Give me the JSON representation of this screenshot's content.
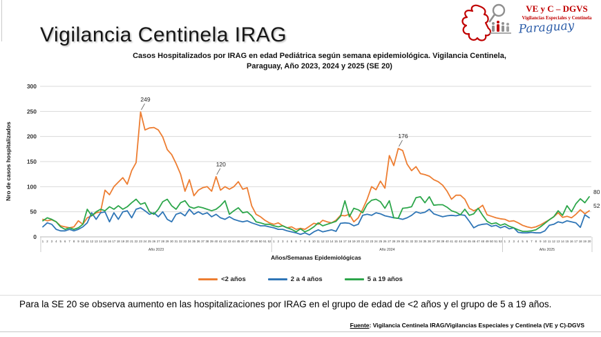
{
  "slide": {
    "title": "Vigilancia Centinela IRAG",
    "commentary": "Para la SE 20 se observa aumento en las hospitalizaciones por IRAG en el grupo de edad de <2 años y el grupo de 5 a 19 años.",
    "source_label": "Fuente",
    "source_text": ": Vigilancia  Centinela IRAG/Vigilancias Especiales y Centinela (VE y C)-DGVS"
  },
  "logo": {
    "line1": "VE y C – DGVS",
    "line2": "Vigilancias Especiales y Centinela",
    "line3": "Paraguay",
    "red": "#c00000",
    "blue": "#2b5ca8",
    "gray": "#8f8f8f"
  },
  "chart_data": {
    "type": "line",
    "title_line1": "Casos Hospitalizados por IRAG en edad Pediátrica según semana epidemiológica. Vigilancia Centinela,",
    "title_line2": "Paraguay, Año 2023, 2024 y 2025 (SE 20)",
    "ylabel": "Nro de casos hospitalizados",
    "xlabel": "Años/Semanas Epidemiológicas",
    "ylim": [
      0,
      300
    ],
    "ytick_step": 50,
    "grid": true,
    "legend_position": "bottom",
    "groups": [
      {
        "label": "Año 2023",
        "weeks": 52
      },
      {
        "label": "Año 2024",
        "weeks": 52
      },
      {
        "label": "Año 2025",
        "weeks": 20
      }
    ],
    "series": [
      {
        "name": "<2  años",
        "color": "#ED7D31",
        "values": [
          35,
          32,
          34,
          30,
          22,
          20,
          18,
          20,
          32,
          25,
          38,
          42,
          48,
          50,
          93,
          84,
          100,
          109,
          118,
          105,
          132,
          148,
          249,
          213,
          217,
          218,
          213,
          199,
          174,
          164,
          146,
          125,
          91,
          114,
          82,
          93,
          98,
          100,
          91,
          120,
          93,
          100,
          95,
          100,
          110,
          95,
          98,
          62,
          45,
          40,
          33,
          28,
          25,
          28,
          22,
          18,
          20,
          15,
          17,
          15,
          21,
          27,
          25,
          33,
          30,
          28,
          33,
          43,
          42,
          45,
          30,
          38,
          55,
          75,
          100,
          94,
          111,
          97,
          162,
          142,
          176,
          172,
          145,
          132,
          140,
          126,
          124,
          121,
          114,
          110,
          103,
          91,
          75,
          83,
          83,
          75,
          57,
          52,
          56,
          63,
          44,
          41,
          38,
          36,
          35,
          31,
          32,
          28,
          23,
          20,
          18,
          20,
          24,
          29,
          34,
          40,
          48,
          39,
          41,
          38,
          45,
          54,
          46,
          52
        ]
      },
      {
        "name": "2 a 4 años",
        "color": "#2E75B6",
        "values": [
          20,
          28,
          25,
          15,
          12,
          12,
          15,
          12,
          15,
          20,
          28,
          48,
          35,
          48,
          50,
          30,
          48,
          35,
          50,
          52,
          38,
          55,
          58,
          52,
          45,
          48,
          40,
          50,
          35,
          30,
          45,
          48,
          42,
          55,
          45,
          50,
          45,
          48,
          40,
          45,
          38,
          35,
          40,
          35,
          32,
          30,
          32,
          28,
          25,
          22,
          22,
          20,
          18,
          15,
          15,
          12,
          10,
          8,
          5,
          8,
          4,
          10,
          14,
          10,
          12,
          14,
          11,
          27,
          28,
          27,
          22,
          25,
          43,
          45,
          43,
          48,
          46,
          42,
          40,
          38,
          37,
          35,
          38,
          43,
          50,
          47,
          49,
          55,
          46,
          43,
          40,
          42,
          43,
          42,
          44,
          43,
          31,
          18,
          23,
          25,
          26,
          21,
          23,
          18,
          21,
          16,
          18,
          9,
          8,
          8,
          9,
          8,
          8,
          12,
          23,
          25,
          30,
          28,
          32,
          30,
          28,
          19,
          44,
          38
        ]
      },
      {
        "name": "5 a 19 años",
        "color": "#2CA64A",
        "values": [
          32,
          38,
          35,
          30,
          20,
          15,
          18,
          15,
          18,
          25,
          55,
          42,
          50,
          55,
          52,
          60,
          55,
          62,
          55,
          60,
          68,
          75,
          65,
          68,
          50,
          45,
          55,
          70,
          75,
          62,
          55,
          68,
          72,
          60,
          57,
          60,
          58,
          55,
          52,
          55,
          62,
          72,
          45,
          52,
          58,
          48,
          50,
          42,
          30,
          28,
          25,
          25,
          22,
          20,
          22,
          18,
          15,
          10,
          16,
          10,
          14,
          20,
          28,
          22,
          25,
          28,
          31,
          41,
          72,
          40,
          57,
          54,
          48,
          65,
          73,
          75,
          70,
          57,
          72,
          38,
          37,
          57,
          58,
          60,
          78,
          80,
          68,
          80,
          63,
          64,
          64,
          59,
          52,
          49,
          44,
          55,
          43,
          46,
          57,
          43,
          31,
          26,
          28,
          23,
          26,
          21,
          18,
          14,
          11,
          11,
          12,
          14,
          20,
          27,
          34,
          40,
          52,
          43,
          62,
          50,
          66,
          76,
          68,
          80
        ]
      }
    ],
    "annotations": [
      {
        "series": 0,
        "index": 22,
        "label": "249",
        "edge": false
      },
      {
        "series": 0,
        "index": 39,
        "label": "120",
        "edge": false
      },
      {
        "series": 0,
        "index": 80,
        "label": "176",
        "edge": false
      },
      {
        "series": 2,
        "index": 123,
        "label": "80",
        "edge": true
      },
      {
        "series": 0,
        "index": 123,
        "label": "52",
        "edge": true
      }
    ]
  }
}
